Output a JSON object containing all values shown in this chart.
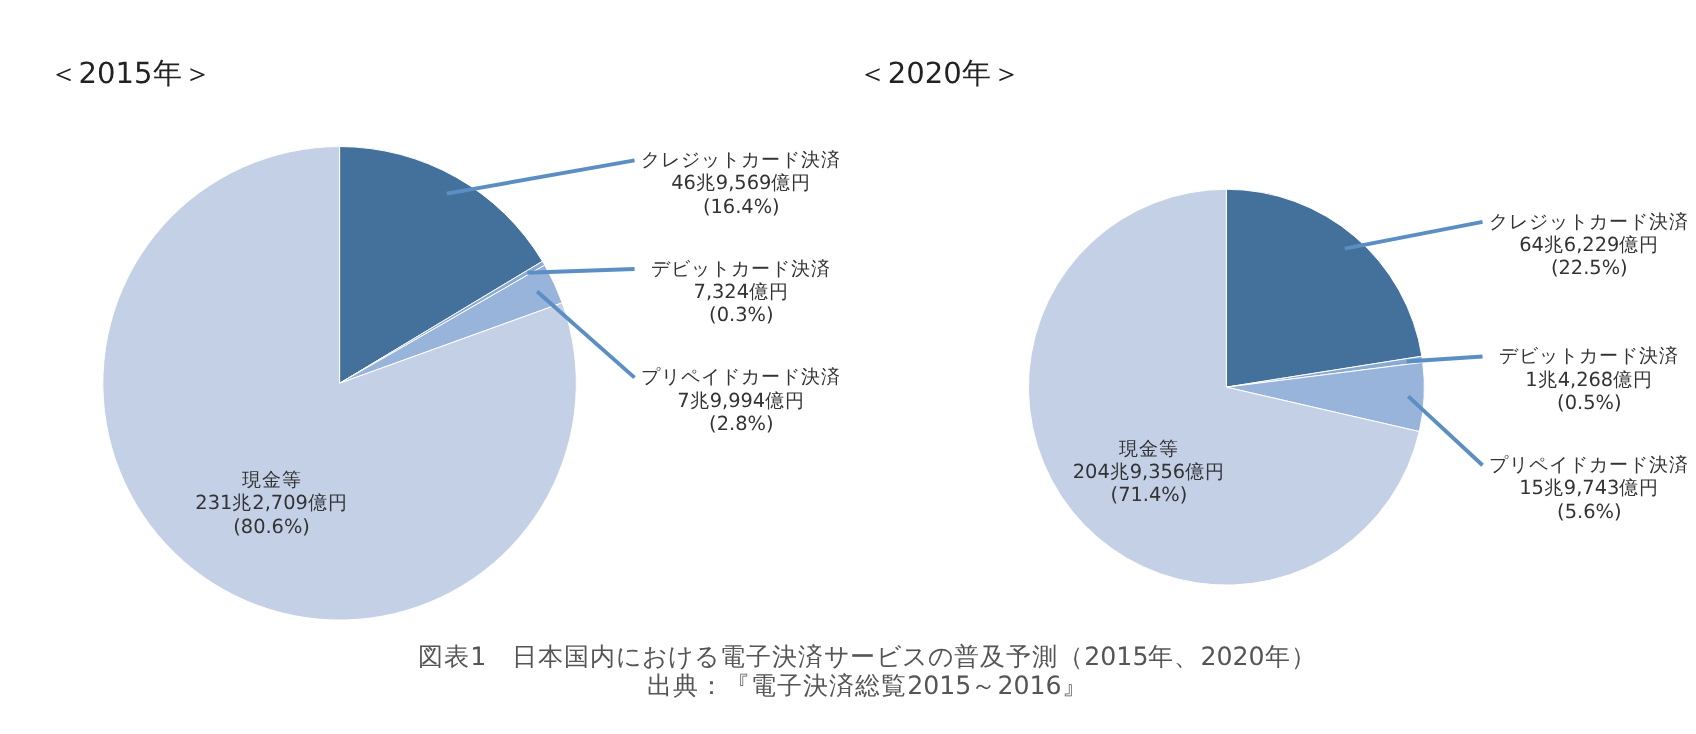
{
  "chart_data": [
    {
      "type": "pie",
      "title": "＜2015年＞",
      "categories": [
        "クレジットカード決済",
        "デビットカード決済",
        "プリペイドカード決済",
        "現金等"
      ],
      "values": [
        16.4,
        0.3,
        2.8,
        80.6
      ],
      "colors": [
        "#44719c",
        "#8aaad4",
        "#98b4da",
        "#c3d0e6"
      ],
      "value_labels": [
        "46兆9,569億円\n(16.4%)",
        "7,324億円\n(0.3%)",
        "7兆9,994億円\n(2.8%)",
        "231兆2,709億円\n(80.6%)"
      ],
      "annotations": [
        "図表1　日本国内における電子決済サービスの普及予測（2015年、2020年）",
        "出典：『電子決済総覧2015～2016』"
      ]
    },
    {
      "type": "pie",
      "title": "＜2020年＞",
      "categories": [
        "クレジットカード決済",
        "デビットカード決済",
        "プリペイドカード決済",
        "現金等"
      ],
      "values": [
        22.5,
        0.5,
        5.6,
        71.4
      ],
      "colors": [
        "#44719c",
        "#8aaad4",
        "#98b4da",
        "#c3d0e6"
      ],
      "value_labels": [
        "64兆6,229億円\n(22.5%)",
        "1兆4,268億円\n(0.5%)",
        "15兆9,743億円\n(5.6%)",
        "204兆9,356億円\n(71.4%)"
      ]
    }
  ]
}
